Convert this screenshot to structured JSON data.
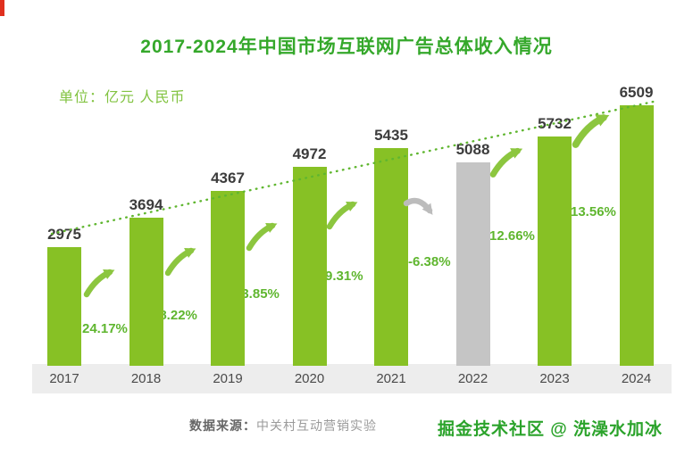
{
  "header": {
    "title": "2017-2024年中国市场互联网广告总体收入情况",
    "unit_label": "单位：亿元 人民币"
  },
  "footer": {
    "source_prefix": "数据来源：",
    "source_text": "中关村互动营销实验",
    "watermark": "掘金技术社区 @ 洗澡水加冰"
  },
  "colors": {
    "title_green": "#35a82b",
    "subtitle_green": "#82c341",
    "bar_green": "#87c125",
    "bar_gray": "#c5c5c5",
    "percent_green": "#5fb62f",
    "arrow_green": "#8cc63f",
    "arrow_gray": "#bcbcbc",
    "trend_green": "#5fb62f",
    "value_text": "#3c3c3c",
    "axis_text": "#4a4a4a",
    "axis_band": "#ededed",
    "watermark_green": "#2ba32b",
    "corner_red": "#e0301e"
  },
  "chart_data": {
    "type": "bar",
    "title": "2017-2024年中国市场互联网广告总体收入情况",
    "unit": "亿元 人民币",
    "categories": [
      "2017",
      "2018",
      "2019",
      "2020",
      "2021",
      "2022",
      "2023",
      "2024"
    ],
    "values": [
      2975,
      3694,
      4367,
      4972,
      5435,
      5088,
      5732,
      6509
    ],
    "growth_labels": [
      "24.17%",
      "18.22%",
      "13.85%",
      "9.31%",
      "-6.38%",
      "12.66%",
      "13.56%"
    ],
    "highlight_index": 5,
    "ylim": [
      0,
      6800
    ],
    "trendline": true,
    "legend": false,
    "grid": false
  }
}
